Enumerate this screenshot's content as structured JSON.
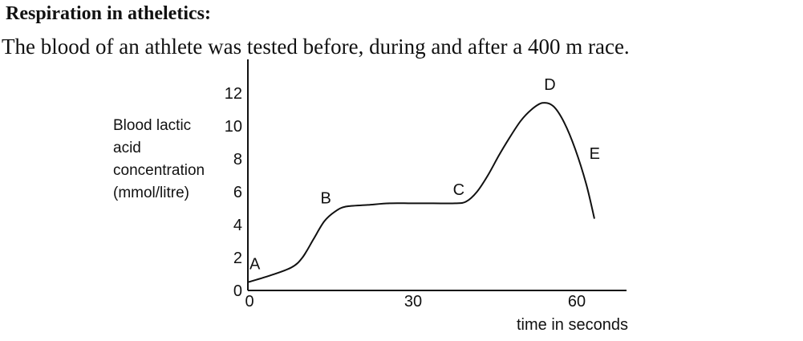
{
  "heading": "Respiration in atheletics:",
  "intro": "The blood of an athlete was tested before, during and after a 400 m race.",
  "chart_data": {
    "type": "line",
    "title": "",
    "xlabel": "time in seconds",
    "ylabel_lines": [
      "Blood lactic",
      "acid",
      "concentration",
      "(mmol/litre)"
    ],
    "xlim": [
      0,
      69
    ],
    "ylim": [
      0,
      14
    ],
    "x_ticks": [
      0,
      30,
      60
    ],
    "y_ticks": [
      0,
      2,
      4,
      6,
      8,
      10,
      12
    ],
    "grid": false,
    "series": [
      {
        "x": [
          0,
          4,
          8,
          10,
          12,
          14,
          16,
          18,
          22,
          26,
          30,
          34,
          38,
          40,
          42,
          44,
          46,
          48,
          50,
          52,
          54,
          56,
          58,
          60,
          62,
          63.5
        ],
        "y": [
          0.5,
          0.9,
          1.4,
          2.0,
          3.1,
          4.2,
          4.8,
          5.1,
          5.2,
          5.3,
          5.3,
          5.3,
          5.3,
          5.4,
          6.0,
          7.0,
          8.2,
          9.3,
          10.3,
          11.0,
          11.4,
          11.2,
          10.2,
          8.6,
          6.5,
          4.4
        ]
      }
    ],
    "annotations": [
      {
        "label": "A",
        "x": 0.3,
        "y": 1.3
      },
      {
        "label": "B",
        "x": 13.3,
        "y": 5.3
      },
      {
        "label": "C",
        "x": 37.6,
        "y": 5.8
      },
      {
        "label": "D",
        "x": 54.3,
        "y": 12.2
      },
      {
        "label": "E",
        "x": 62.6,
        "y": 8.0
      }
    ]
  }
}
